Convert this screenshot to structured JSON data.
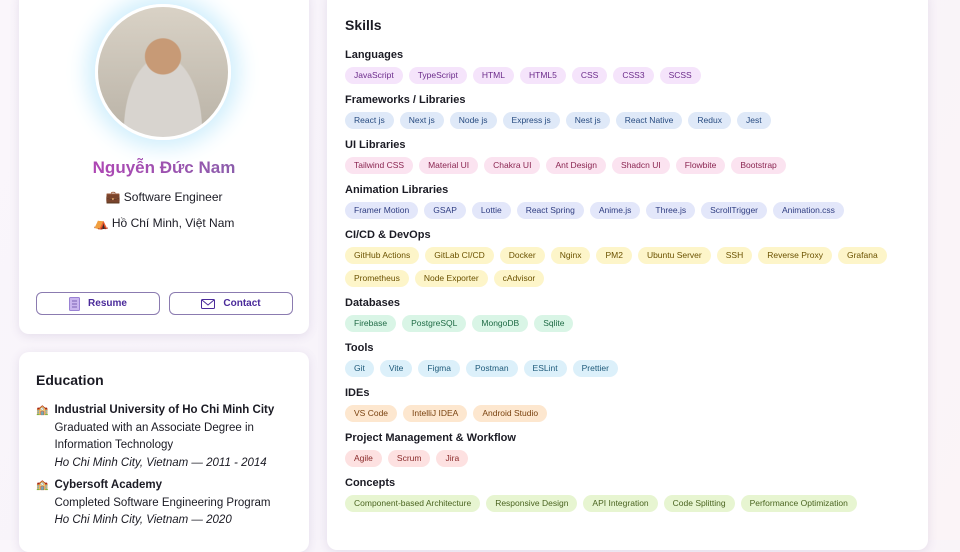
{
  "profile": {
    "name": "Nguyễn Đức Nam",
    "role_icon": "💼",
    "role": "Software Engineer",
    "location_icon": "⛺",
    "location": "Hồ Chí Minh, Việt Nam",
    "resume_label": "Resume",
    "contact_label": "Contact"
  },
  "education": {
    "title": "Education",
    "items": [
      {
        "school": "Industrial University of Ho Chi Minh City",
        "detail": "Graduated with an Associate Degree in Information Technology",
        "meta": "Ho Chi Minh City, Vietnam — 2011 - 2014"
      },
      {
        "school": "Cybersoft Academy",
        "detail": "Completed Software Engineering Program",
        "meta": "Ho Chi Minh City, Vietnam — 2020"
      }
    ]
  },
  "skills": {
    "title": "Skills",
    "categories": [
      {
        "name": "Languages",
        "bg": "#f5e4fb",
        "fg": "#6b2a8a",
        "items": [
          "JavaScript",
          "TypeScript",
          "HTML",
          "HTML5",
          "CSS",
          "CSS3",
          "SCSS"
        ]
      },
      {
        "name": "Frameworks / Libraries",
        "bg": "#dfe9f8",
        "fg": "#274b80",
        "items": [
          "React js",
          "Next js",
          "Node js",
          "Express js",
          "Nest js",
          "React Native",
          "Redux",
          "Jest"
        ]
      },
      {
        "name": "UI Libraries",
        "bg": "#fbe3f0",
        "fg": "#8a2450",
        "items": [
          "Tailwind CSS",
          "Material UI",
          "Chakra UI",
          "Ant Design",
          "Shadcn UI",
          "Flowbite",
          "Bootstrap"
        ]
      },
      {
        "name": "Animation Libraries",
        "bg": "#e3e7fa",
        "fg": "#2e3c80",
        "items": [
          "Framer Motion",
          "GSAP",
          "Lottie",
          "React Spring",
          "Anime.js",
          "Three.js",
          "ScrollTrigger",
          "Animation.css"
        ]
      },
      {
        "name": "CI/CD & DevOps",
        "bg": "#fdf5c9",
        "fg": "#6b5200",
        "items": [
          "GitHub Actions",
          "GitLab CI/CD",
          "Docker",
          "Nginx",
          "PM2",
          "Ubuntu Server",
          "SSH",
          "Reverse Proxy",
          "Grafana",
          "Prometheus",
          "Node Exporter",
          "cAdvisor"
        ]
      },
      {
        "name": "Databases",
        "bg": "#d9f5e6",
        "fg": "#1f6b45",
        "items": [
          "Firebase",
          "PostgreSQL",
          "MongoDB",
          "Sqlite"
        ]
      },
      {
        "name": "Tools",
        "bg": "#dcf0fa",
        "fg": "#1e5a7a",
        "items": [
          "Git",
          "Vite",
          "Figma",
          "Postman",
          "ESLint",
          "Prettier"
        ]
      },
      {
        "name": "IDEs",
        "bg": "#fde7cf",
        "fg": "#7a4310",
        "items": [
          "VS Code",
          "IntelliJ IDEA",
          "Android Studio"
        ]
      },
      {
        "name": "Project Management & Workflow",
        "bg": "#fde1e1",
        "fg": "#8a2a2a",
        "items": [
          "Agile",
          "Scrum",
          "Jira"
        ]
      },
      {
        "name": "Concepts",
        "bg": "#e7f5d1",
        "fg": "#4a6420",
        "items": [
          "Component-based Architecture",
          "Responsive Design",
          "API Integration",
          "Code Splitting",
          "Performance Optimization"
        ]
      }
    ]
  }
}
